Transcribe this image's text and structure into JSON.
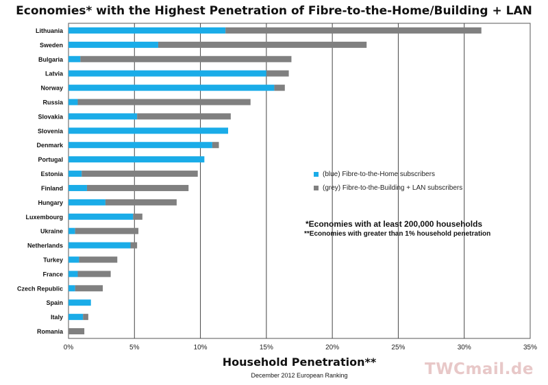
{
  "chart_data": {
    "type": "bar",
    "orientation": "horizontal",
    "stacked": true,
    "title": "Economies* with the Highest Penetration of Fibre-to-the-Home/Building + LAN",
    "xlabel": "Household Penetration**",
    "subtitle": "December 2012 European Ranking",
    "xlim": [
      0,
      35
    ],
    "xticks": [
      "0%",
      "5%",
      "10%",
      "15%",
      "20%",
      "25%",
      "30%",
      "35%"
    ],
    "grid": "vertical",
    "categories": [
      "Lithuania",
      "Sweden",
      "Bulgaria",
      "Latvia",
      "Norway",
      "Russia",
      "Slovakia",
      "Slovenia",
      "Denmark",
      "Portugal",
      "Estonia",
      "Finland",
      "Hungary",
      "Luxembourg",
      "Ukraine",
      "Netherlands",
      "Turkey",
      "France",
      "Czech Republic",
      "Spain",
      "Italy",
      "Romania"
    ],
    "series": [
      {
        "name": "(blue) Fibre-to-the-Home subscribers",
        "color": "#1aace8",
        "values": [
          11.9,
          6.8,
          0.9,
          15.0,
          15.6,
          0.7,
          5.2,
          12.1,
          10.9,
          10.3,
          1.0,
          1.4,
          2.8,
          4.9,
          0.5,
          4.7,
          0.8,
          0.7,
          0.5,
          1.7,
          1.1,
          0.0
        ]
      },
      {
        "name": "(grey) Fibre-to-the-Building + LAN subscribers",
        "color": "#808080",
        "values": [
          19.4,
          15.8,
          16.0,
          1.7,
          0.8,
          13.1,
          7.1,
          0.0,
          0.5,
          0.0,
          8.8,
          7.7,
          5.4,
          0.7,
          4.8,
          0.5,
          2.9,
          2.5,
          2.1,
          0.0,
          0.4,
          1.2
        ]
      }
    ],
    "legend": "center-right",
    "annotations": [
      "*Economies with at least 200,000 households",
      "**Economies with greater than 1% household penetration"
    ]
  },
  "watermark": "TWCmail.de"
}
